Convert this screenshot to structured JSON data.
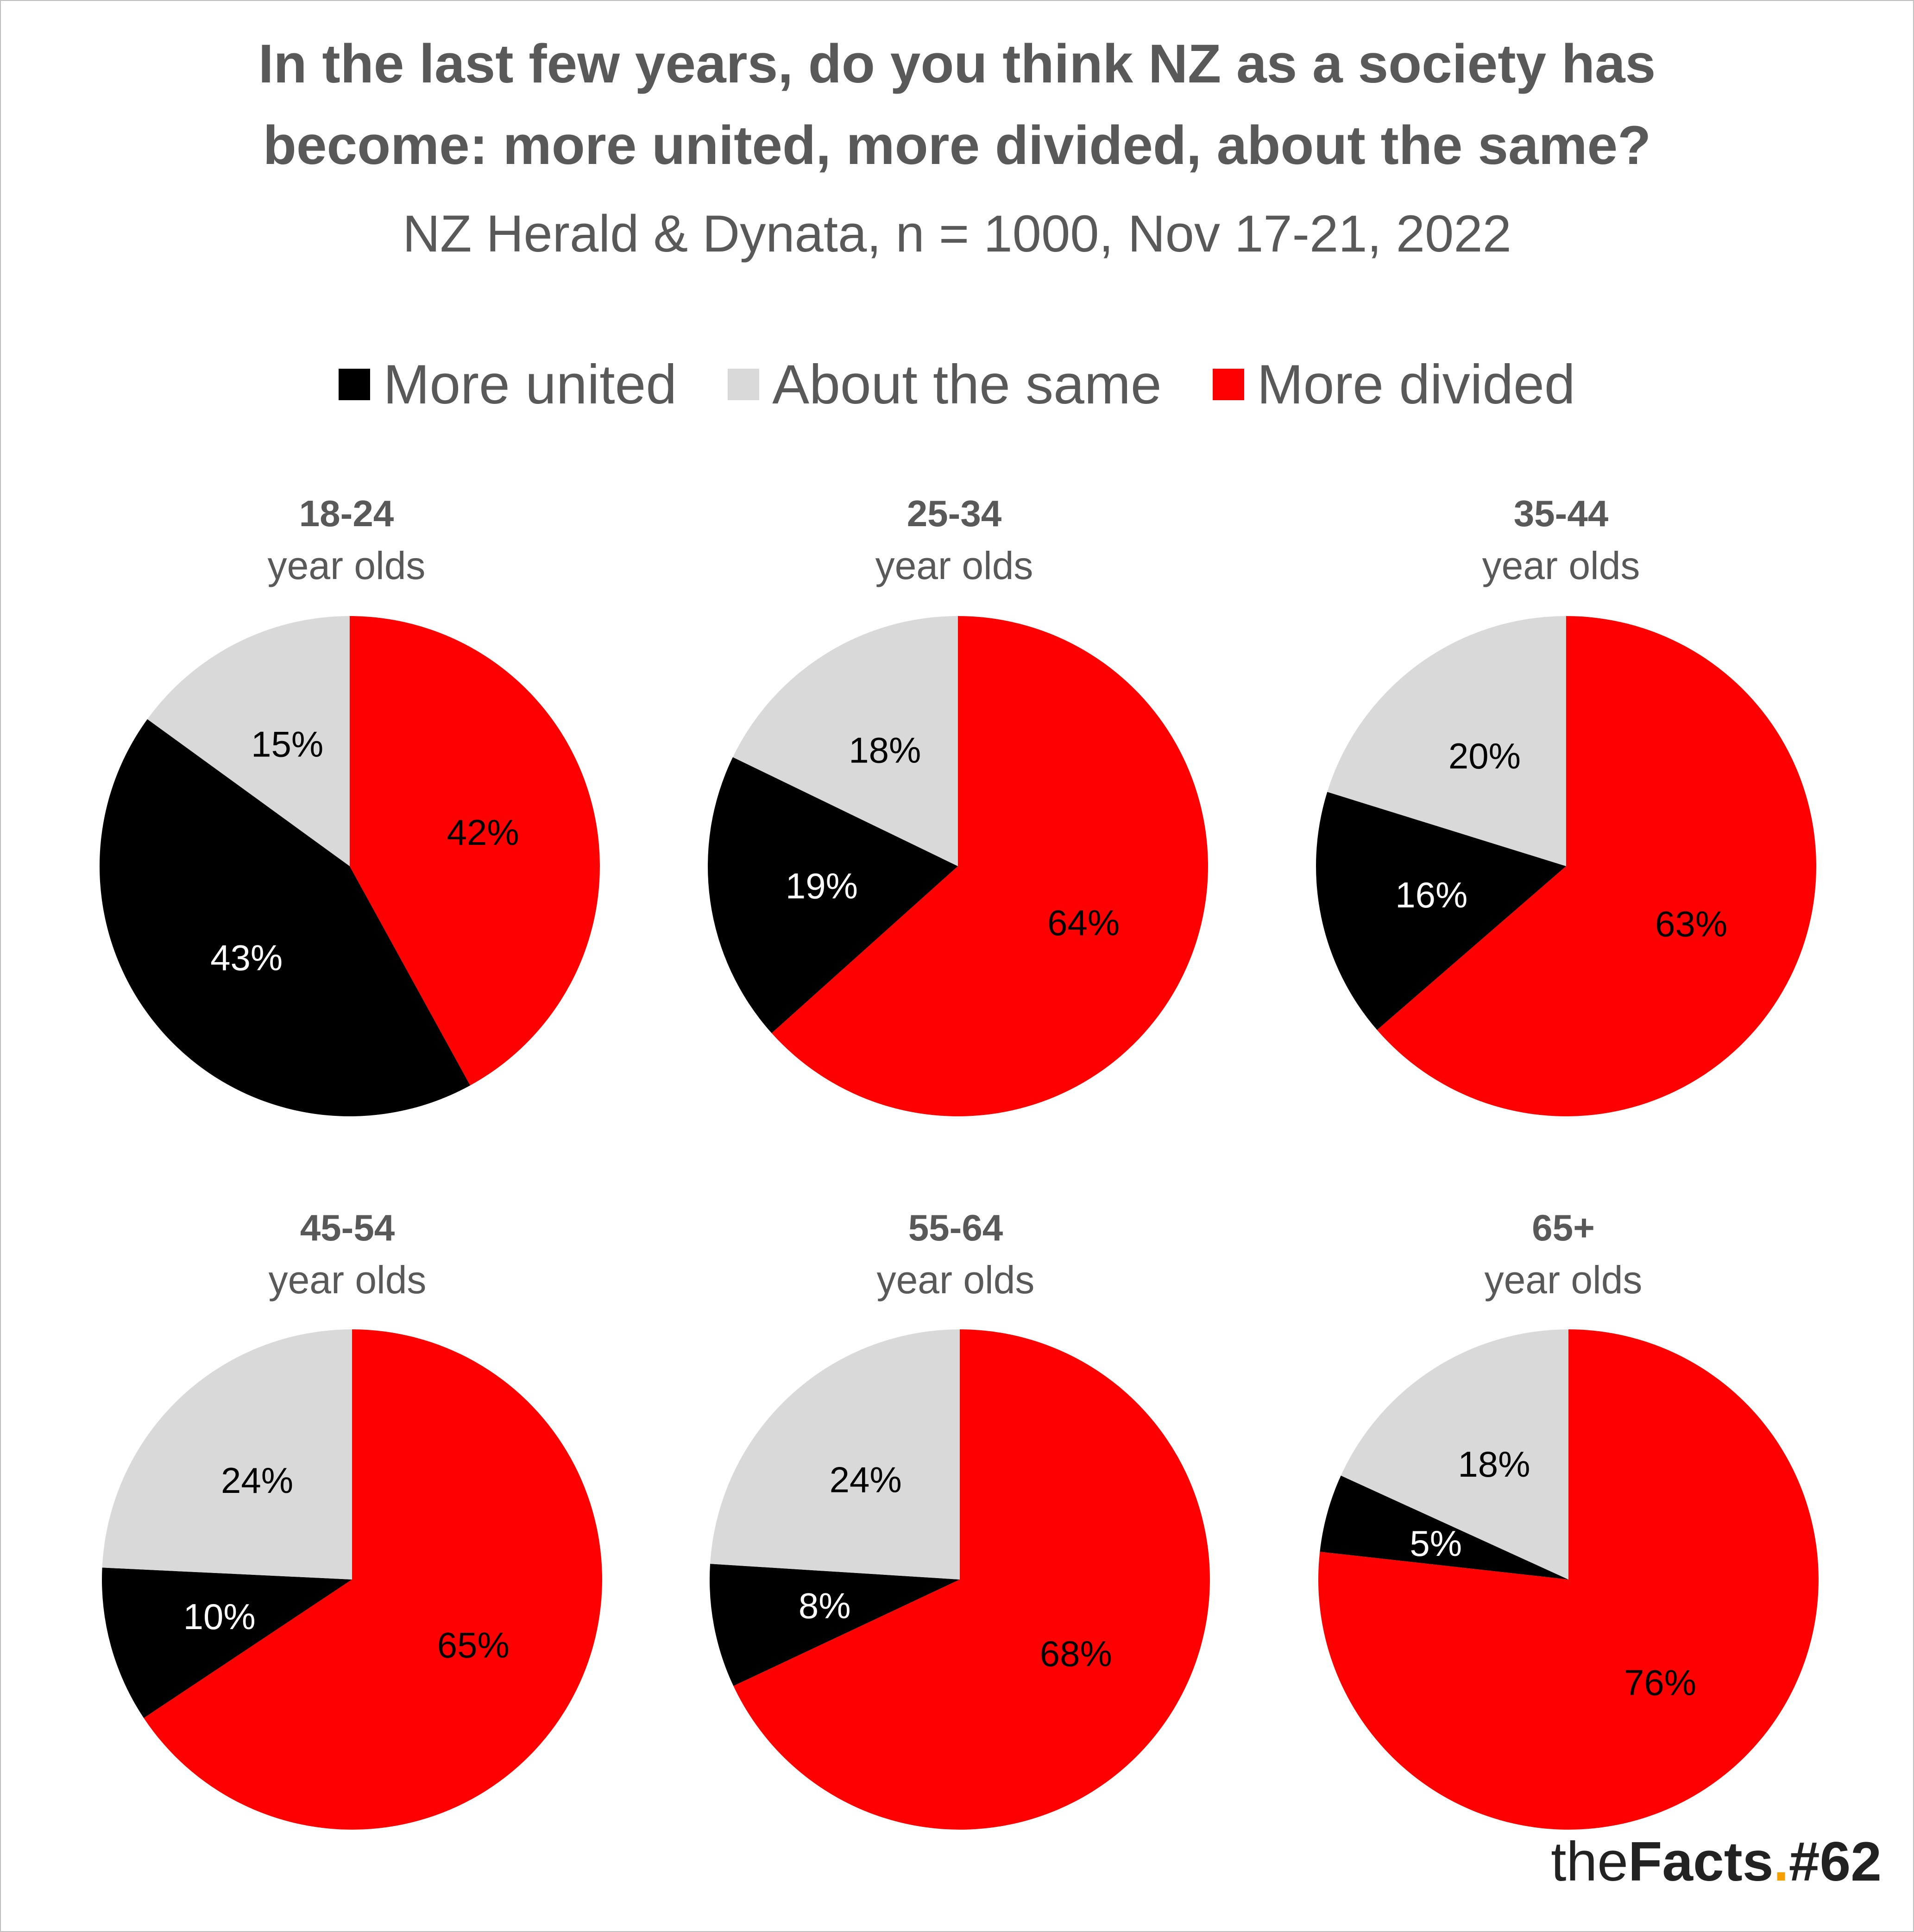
{
  "title_line1": "In the last few years, do you think NZ as a society has",
  "title_line2": "become: more united, more divided, about the same?",
  "subtitle": "NZ Herald & Dynata, n = 1000, Nov 17-21, 2022",
  "legend": [
    {
      "label": "More united",
      "color": "#000000"
    },
    {
      "label": "About the same",
      "color": "#d9d9d9"
    },
    {
      "label": "More divided",
      "color": "#ff0000"
    }
  ],
  "brand": {
    "the": "the",
    "facts": "Facts",
    "dot": ".",
    "number": "#62"
  },
  "colors": {
    "more_united": "#000000",
    "about_same": "#d9d9d9",
    "more_divided": "#ff0000",
    "brand_dot": "#f5a000"
  },
  "chart_data": [
    {
      "type": "pie",
      "title": "18-24",
      "subtitle": "year olds",
      "categories": [
        "More united",
        "About the same",
        "More divided"
      ],
      "values": [
        43,
        15,
        42
      ]
    },
    {
      "type": "pie",
      "title": "25-34",
      "subtitle": "year olds",
      "categories": [
        "More united",
        "About the same",
        "More divided"
      ],
      "values": [
        19,
        18,
        64
      ]
    },
    {
      "type": "pie",
      "title": "35-44",
      "subtitle": "year olds",
      "categories": [
        "More united",
        "About the same",
        "More divided"
      ],
      "values": [
        16,
        20,
        63
      ]
    },
    {
      "type": "pie",
      "title": "45-54",
      "subtitle": "year olds",
      "categories": [
        "More united",
        "About the same",
        "More divided"
      ],
      "values": [
        10,
        24,
        65
      ]
    },
    {
      "type": "pie",
      "title": "55-64",
      "subtitle": "year olds",
      "categories": [
        "More united",
        "About the same",
        "More divided"
      ],
      "values": [
        8,
        24,
        68
      ]
    },
    {
      "type": "pie",
      "title": "65+",
      "subtitle": "year olds",
      "categories": [
        "More united",
        "About the same",
        "More divided"
      ],
      "values": [
        5,
        18,
        76
      ]
    }
  ]
}
